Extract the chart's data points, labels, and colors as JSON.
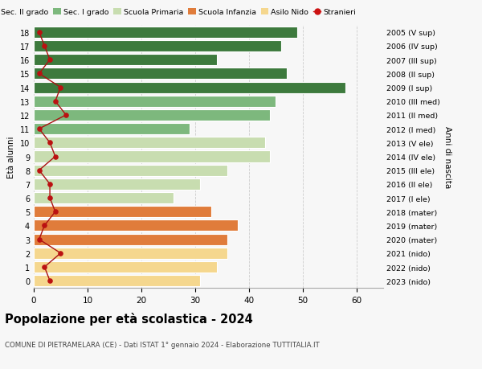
{
  "ages": [
    0,
    1,
    2,
    3,
    4,
    5,
    6,
    7,
    8,
    9,
    10,
    11,
    12,
    13,
    14,
    15,
    16,
    17,
    18
  ],
  "right_labels": [
    "2023 (nido)",
    "2022 (nido)",
    "2021 (nido)",
    "2020 (mater)",
    "2019 (mater)",
    "2018 (mater)",
    "2017 (I ele)",
    "2016 (II ele)",
    "2015 (III ele)",
    "2014 (IV ele)",
    "2013 (V ele)",
    "2012 (I med)",
    "2011 (II med)",
    "2010 (III med)",
    "2009 (I sup)",
    "2008 (II sup)",
    "2007 (III sup)",
    "2006 (IV sup)",
    "2005 (V sup)"
  ],
  "bar_values": [
    31,
    34,
    36,
    36,
    38,
    33,
    26,
    31,
    36,
    44,
    43,
    29,
    44,
    45,
    58,
    47,
    34,
    46,
    49
  ],
  "bar_colors": [
    "#f5d78e",
    "#f5d78e",
    "#f5d78e",
    "#e07c3b",
    "#e07c3b",
    "#e07c3b",
    "#c8ddb0",
    "#c8ddb0",
    "#c8ddb0",
    "#c8ddb0",
    "#c8ddb0",
    "#7db87d",
    "#7db87d",
    "#7db87d",
    "#3d7a3d",
    "#3d7a3d",
    "#3d7a3d",
    "#3d7a3d",
    "#3d7a3d"
  ],
  "stranieri_values": [
    3,
    2,
    5,
    1,
    2,
    4,
    3,
    3,
    1,
    4,
    3,
    1,
    6,
    4,
    5,
    1,
    3,
    2,
    1
  ],
  "title": "Popolazione per età scolastica - 2024",
  "subtitle": "COMUNE DI PIETRAMELARA (CE) - Dati ISTAT 1° gennaio 2024 - Elaborazione TUTTITALIA.IT",
  "ylabel": "Età alunni",
  "right_ylabel": "Anni di nascita",
  "xlim": [
    0,
    65
  ],
  "xticks": [
    0,
    10,
    20,
    30,
    40,
    50,
    60
  ],
  "legend_labels": [
    "Sec. II grado",
    "Sec. I grado",
    "Scuola Primaria",
    "Scuola Infanzia",
    "Asilo Nido",
    "Stranieri"
  ],
  "legend_colors": [
    "#3d7a3d",
    "#7db87d",
    "#c8ddb0",
    "#e07c3b",
    "#f5d78e",
    "#cc1111"
  ],
  "bg_color": "#f7f7f7",
  "bar_height": 0.82
}
